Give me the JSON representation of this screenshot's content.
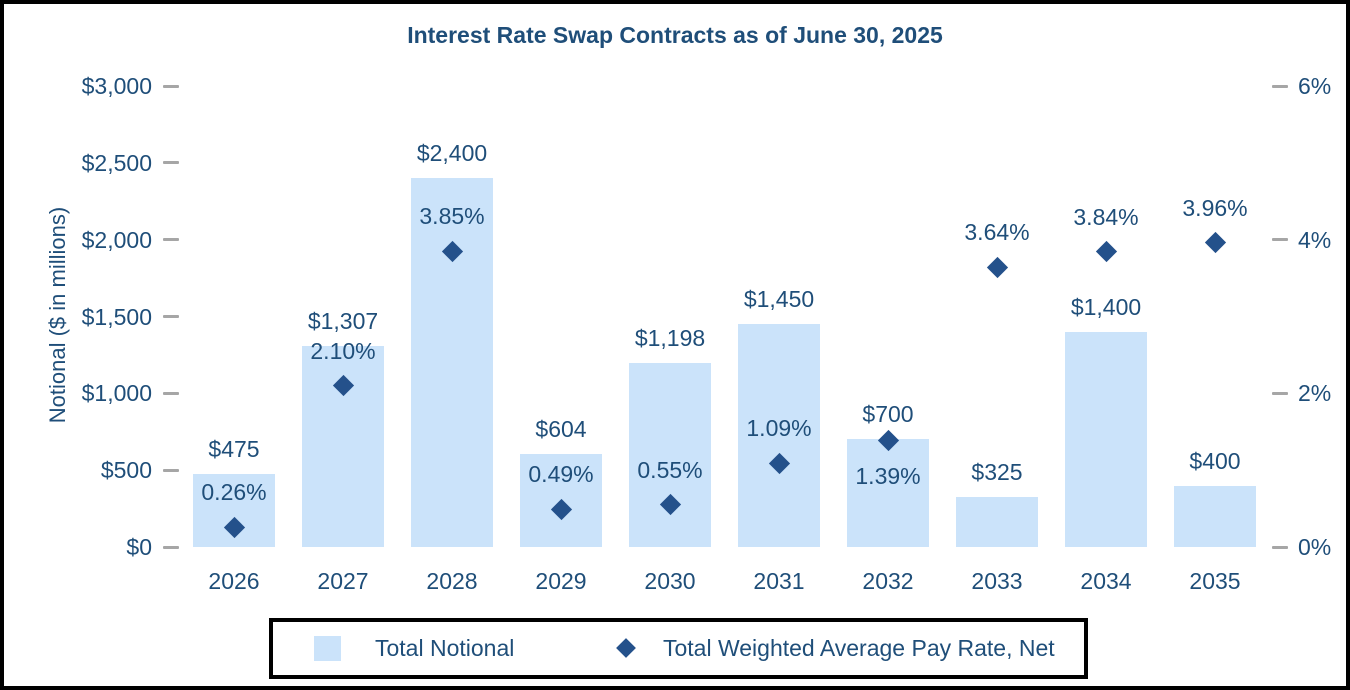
{
  "page": {
    "title": "Interest Rate Swap Contracts as of June 30, 2025"
  },
  "colors": {
    "bar_fill": "#CBE3FA",
    "marker": "#24518B",
    "text": "#1F4E79",
    "tick": "#A6A6A6",
    "frame_border": "#000000"
  },
  "chart_data": {
    "type": "bar",
    "subtype": "combo-bar-scatter",
    "title": "Interest Rate Swap Contracts as of June 30, 2025",
    "categories": [
      "2026",
      "2027",
      "2028",
      "2029",
      "2030",
      "2031",
      "2032",
      "2033",
      "2034",
      "2035"
    ],
    "series": [
      {
        "name": "Total Notional",
        "type": "bar",
        "axis": "left",
        "values": [
          475,
          1307,
          2400,
          604,
          1198,
          1450,
          700,
          325,
          1400,
          400
        ],
        "labels": [
          "$475",
          "$1,307",
          "$2,400",
          "$604",
          "$1,198",
          "$1,450",
          "$700",
          "$325",
          "$1,400",
          "$400"
        ]
      },
      {
        "name": "Total Weighted Average Pay Rate, Net",
        "type": "scatter",
        "marker": "diamond",
        "axis": "right",
        "values": [
          0.26,
          2.1,
          3.85,
          0.49,
          0.55,
          1.09,
          1.39,
          3.64,
          3.84,
          3.96
        ],
        "labels": [
          "0.26%",
          "2.10%",
          "3.85%",
          "0.49%",
          "0.55%",
          "1.09%",
          "1.39%",
          "3.64%",
          "3.84%",
          "3.96%"
        ],
        "label_positions": [
          "above",
          "above",
          "above",
          "above",
          "above",
          "above",
          "below",
          "above",
          "above",
          "above"
        ]
      }
    ],
    "left_axis": {
      "title": "Notional ($ in millions)",
      "max": 3000,
      "ticks": [
        {
          "label": "$0",
          "value": 0
        },
        {
          "label": "$500",
          "value": 500
        },
        {
          "label": "$1,000",
          "value": 1000
        },
        {
          "label": "$1,500",
          "value": 1500
        },
        {
          "label": "$2,000",
          "value": 2000
        },
        {
          "label": "$2,500",
          "value": 2500
        },
        {
          "label": "$3,000",
          "value": 3000
        }
      ]
    },
    "right_axis": {
      "max": 6,
      "ticks": [
        {
          "label": "0%",
          "value": 0
        },
        {
          "label": "2%",
          "value": 2
        },
        {
          "label": "4%",
          "value": 4
        },
        {
          "label": "6%",
          "value": 6
        }
      ]
    },
    "grid": false,
    "legend_position": "bottom",
    "legend": [
      {
        "label": "Total Notional",
        "marker": "square"
      },
      {
        "label": "Total Weighted Average Pay Rate, Net",
        "marker": "diamond"
      }
    ]
  }
}
